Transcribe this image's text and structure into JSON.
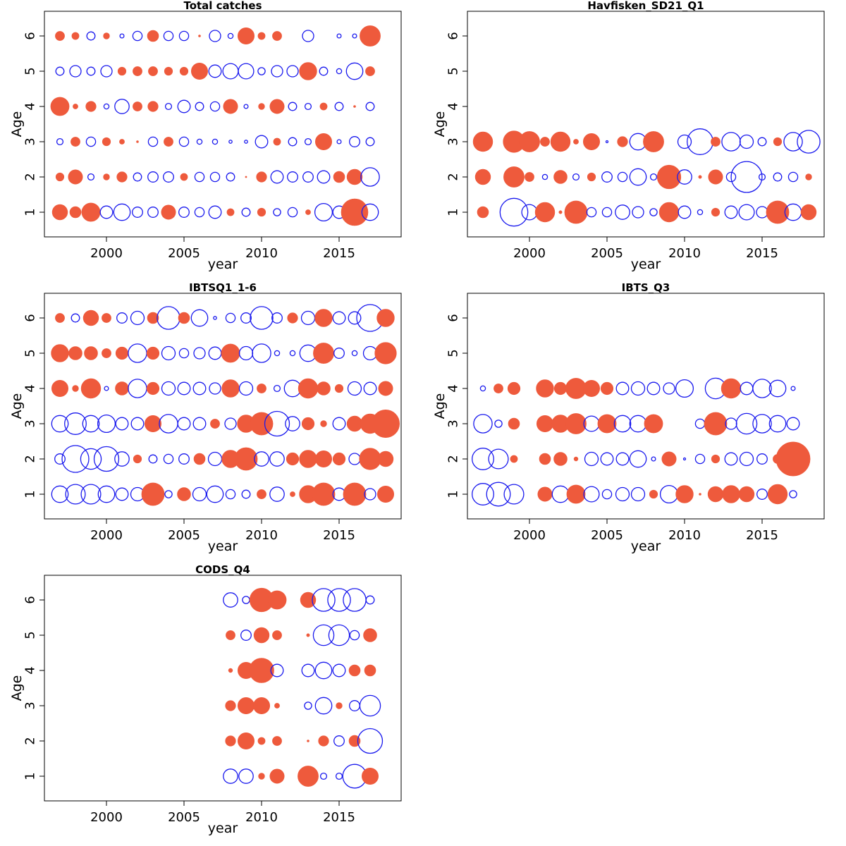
{
  "colors": {
    "positive": "#ee5a3c",
    "negative": "#1a1aee",
    "frame": "#000000"
  },
  "chart_data": [
    {
      "type": "scatter",
      "subtype": "bubble",
      "title": "Total catches",
      "xlabel": "year",
      "ylabel": "Age",
      "xlim": [
        1996,
        2019
      ],
      "ylim": [
        0.3,
        6.7
      ],
      "x_ticks": [
        2000,
        2005,
        2010,
        2015
      ],
      "y_ticks": [
        1,
        2,
        3,
        4,
        5,
        6
      ],
      "x_tick_labels": [
        "2000",
        "2005",
        "2010",
        "2015"
      ],
      "y_tick_labels": [
        "1",
        "2",
        "3",
        "4",
        "5",
        "6"
      ],
      "years": [
        1997,
        1998,
        1999,
        2000,
        2001,
        2002,
        2003,
        2004,
        2005,
        2006,
        2007,
        2008,
        2009,
        2010,
        2011,
        2012,
        2013,
        2014,
        2015,
        2016,
        2017
      ],
      "ages": [
        1,
        2,
        3,
        4,
        5,
        6
      ],
      "residuals": [
        [
          1.5,
          0.8,
          -0.6,
          1.8,
          -0.8,
          0.9
        ],
        [
          1.1,
          1.4,
          0.9,
          0.5,
          -1.1,
          0.7
        ],
        [
          1.8,
          -0.6,
          -0.9,
          1.0,
          -0.8,
          -0.8
        ],
        [
          -1.2,
          0.6,
          0.8,
          -0.5,
          -1.1,
          0.6
        ],
        [
          -1.6,
          1.0,
          0.5,
          -1.4,
          0.8,
          -0.4
        ],
        [
          -1.0,
          -0.8,
          0.2,
          0.9,
          0.9,
          -0.9
        ],
        [
          -1.0,
          -1.0,
          -0.9,
          1.0,
          0.9,
          1.1
        ],
        [
          1.4,
          -1.0,
          0.9,
          -0.6,
          0.8,
          -0.9
        ],
        [
          -1.0,
          0.7,
          -0.9,
          -1.2,
          0.8,
          -0.9
        ],
        [
          -0.9,
          -0.9,
          -0.5,
          -0.8,
          1.6,
          0.2
        ],
        [
          -1.2,
          -0.9,
          -0.5,
          -0.9,
          -1.2,
          -1.1
        ],
        [
          0.7,
          -0.8,
          -0.3,
          1.4,
          -1.5,
          -0.5
        ],
        [
          -0.8,
          0.15,
          -0.3,
          -0.4,
          -1.5,
          1.6
        ],
        [
          0.8,
          1.0,
          -1.2,
          0.6,
          -0.7,
          0.7
        ],
        [
          -0.7,
          -1.2,
          0.7,
          1.4,
          -1.1,
          0.9
        ],
        [
          -0.9,
          -1.0,
          -0.8,
          -0.8,
          -1.1,
          0.0
        ],
        [
          0.5,
          -1.0,
          -0.6,
          -0.6,
          1.7,
          -1.1
        ],
        [
          -1.7,
          -1.2,
          1.6,
          0.7,
          -0.8,
          0.0
        ],
        [
          -1.2,
          1.1,
          -0.4,
          -0.8,
          -0.5,
          -0.4
        ],
        [
          2.6,
          1.5,
          -1.0,
          0.2,
          -1.6,
          -0.4
        ],
        [
          -1.6,
          -1.8,
          -0.8,
          -0.8,
          0.9,
          2.0
        ]
      ]
    },
    {
      "type": "scatter",
      "subtype": "bubble",
      "title": "Havfisken_SD21_Q1",
      "xlabel": "year",
      "ylabel": "Age",
      "xlim": [
        1996,
        2019
      ],
      "ylim": [
        0.3,
        6.7
      ],
      "x_ticks": [
        2000,
        2005,
        2010,
        2015
      ],
      "y_ticks": [
        1,
        2,
        3,
        4,
        5,
        6
      ],
      "x_tick_labels": [
        "2000",
        "2005",
        "2010",
        "2015"
      ],
      "y_tick_labels": [
        "1",
        "2",
        "3",
        "4",
        "5",
        "6"
      ],
      "years": [
        1997,
        1998,
        1999,
        2000,
        2001,
        2002,
        2003,
        2004,
        2005,
        2006,
        2007,
        2008,
        2009,
        2010,
        2011,
        2012,
        2013,
        2014,
        2015,
        2016,
        2017,
        2018
      ],
      "ages": [
        1,
        2,
        3
      ],
      "residuals": [
        [
          1.1,
          1.5,
          1.9
        ],
        [
          0,
          0,
          0
        ],
        [
          -2.7,
          2.0,
          2.1
        ],
        [
          -1.5,
          0.9,
          2.0
        ],
        [
          1.9,
          -0.5,
          0.9
        ],
        [
          0.3,
          1.3,
          1.9
        ],
        [
          2.2,
          -0.6,
          0.5
        ],
        [
          -0.9,
          0.8,
          1.6
        ],
        [
          -0.9,
          -1.0,
          -0.2
        ],
        [
          -1.4,
          -0.9,
          1.0
        ],
        [
          -1.1,
          -1.6,
          -1.6
        ],
        [
          -0.7,
          -0.6,
          2.0
        ],
        [
          1.9,
          2.3,
          0
        ],
        [
          -1.2,
          -1.4,
          -1.3
        ],
        [
          -0.5,
          0.3,
          -2.5
        ],
        [
          0.8,
          1.4,
          0.9
        ],
        [
          -1.2,
          -0.9,
          -1.8
        ],
        [
          -1.5,
          -3.0,
          -1.3
        ],
        [
          -1.1,
          -0.6,
          -0.8
        ],
        [
          2.2,
          -0.8,
          0.8
        ],
        [
          -1.6,
          -0.9,
          -1.8
        ],
        [
          1.5,
          0.6,
          -2.2
        ]
      ]
    },
    {
      "type": "scatter",
      "subtype": "bubble",
      "title": "IBTSQ1_1-6",
      "xlabel": "year",
      "ylabel": "Age",
      "xlim": [
        1996,
        2019
      ],
      "ylim": [
        0.3,
        6.7
      ],
      "x_ticks": [
        2000,
        2005,
        2010,
        2015
      ],
      "y_ticks": [
        1,
        2,
        3,
        4,
        5,
        6
      ],
      "x_tick_labels": [
        "2000",
        "2005",
        "2010",
        "2015"
      ],
      "y_tick_labels": [
        "1",
        "2",
        "3",
        "4",
        "5",
        "6"
      ],
      "years": [
        1997,
        1998,
        1999,
        2000,
        2001,
        2002,
        2003,
        2004,
        2005,
        2006,
        2007,
        2008,
        2009,
        2010,
        2011,
        2012,
        2013,
        2014,
        2015,
        2016,
        2017,
        2018
      ],
      "ages": [
        1,
        2,
        3,
        4,
        5,
        6
      ],
      "residuals": [
        [
          -1.6,
          -1.0,
          -1.6,
          1.6,
          1.7,
          0.9
        ],
        [
          -1.9,
          -2.6,
          -2.1,
          0.6,
          1.3,
          -0.8
        ],
        [
          -1.9,
          -2.0,
          -1.6,
          1.9,
          1.3,
          1.5
        ],
        [
          -1.6,
          -2.4,
          -1.7,
          -0.4,
          0.9,
          0.9
        ],
        [
          -1.2,
          -1.4,
          -1.2,
          1.3,
          1.2,
          -1.0
        ],
        [
          -1.3,
          0.8,
          -1.2,
          -1.8,
          -1.8,
          -1.3
        ],
        [
          2.2,
          -0.8,
          1.6,
          1.2,
          1.2,
          1.1
        ],
        [
          -0.7,
          -0.9,
          -1.8,
          -1.3,
          -1.3,
          -2.2
        ],
        [
          1.3,
          -1.0,
          -1.2,
          -1.2,
          -0.9,
          1.1
        ],
        [
          -1.3,
          1.1,
          -1.2,
          -1.2,
          -1.1,
          -1.6
        ],
        [
          -1.6,
          -1.3,
          0.9,
          -1.1,
          -1.2,
          -0.3
        ],
        [
          -0.9,
          1.7,
          -1.1,
          1.7,
          1.8,
          -0.9
        ],
        [
          -0.8,
          2.2,
          1.7,
          -1.3,
          -1.3,
          -1.0
        ],
        [
          0.9,
          -1.4,
          2.2,
          0.9,
          -1.8,
          -2.2
        ],
        [
          -1.4,
          -1.4,
          -2.4,
          -0.6,
          -0.5,
          -1.0
        ],
        [
          0.5,
          1.2,
          -1.4,
          -1.6,
          -0.5,
          1.0
        ],
        [
          1.7,
          1.7,
          1.2,
          1.9,
          -1.6,
          -1.3
        ],
        [
          2.2,
          1.6,
          0.6,
          1.3,
          2.0,
          1.7
        ],
        [
          -1.2,
          1.2,
          -1.2,
          0.8,
          -1.0,
          -1.2
        ],
        [
          2.2,
          -1.1,
          1.5,
          -1.3,
          -0.5,
          -1.2
        ],
        [
          -1.1,
          2.1,
          1.9,
          -1.2,
          -1.3,
          -2.6
        ],
        [
          1.6,
          1.5,
          2.7,
          1.4,
          2.1,
          1.7
        ]
      ]
    },
    {
      "type": "scatter",
      "subtype": "bubble",
      "title": "IBTS_Q3",
      "xlabel": "year",
      "ylabel": "Age",
      "xlim": [
        1996,
        2019
      ],
      "ylim": [
        0.3,
        6.7
      ],
      "x_ticks": [
        2000,
        2005,
        2010,
        2015
      ],
      "y_ticks": [
        1,
        2,
        3,
        4,
        5,
        6
      ],
      "x_tick_labels": [
        "2000",
        "2005",
        "2010",
        "2015"
      ],
      "y_tick_labels": [
        "1",
        "2",
        "3",
        "4",
        "5",
        "6"
      ],
      "years": [
        1997,
        1998,
        1999,
        2000,
        2001,
        2002,
        2003,
        2004,
        2005,
        2006,
        2007,
        2008,
        2009,
        2010,
        2011,
        2012,
        2013,
        2014,
        2015,
        2016,
        2017
      ],
      "ages": [
        1,
        2,
        3,
        4
      ],
      "residuals": [
        [
          -2.1,
          -2.1,
          -1.8,
          -0.5
        ],
        [
          -2.3,
          -1.9,
          -0.7,
          0.9
        ],
        [
          -1.9,
          0.7,
          1.1,
          1.2
        ],
        [
          0,
          0,
          0,
          0
        ],
        [
          1.4,
          1.1,
          1.6,
          1.7
        ],
        [
          -1.6,
          1.3,
          1.7,
          1.2
        ],
        [
          1.8,
          0.4,
          2.0,
          2.0
        ],
        [
          -1.5,
          -1.3,
          -1.5,
          1.6
        ],
        [
          -0.9,
          -1.2,
          1.8,
          1.2
        ],
        [
          -1.3,
          -1.2,
          -1.6,
          -1.2
        ],
        [
          -1.3,
          -1.6,
          -1.6,
          -1.3
        ],
        [
          0.8,
          -0.4,
          1.8,
          -1.2
        ],
        [
          -1.7,
          1.4,
          0,
          -1.1
        ],
        [
          1.7,
          -0.2,
          0,
          -1.7
        ],
        [
          0.2,
          -0.9,
          -0.9,
          0
        ],
        [
          1.5,
          0.8,
          2.2,
          -2.0
        ],
        [
          1.7,
          -1.2,
          -1.1,
          1.9
        ],
        [
          1.5,
          -1.3,
          -2.0,
          -1.2
        ],
        [
          -1.0,
          -1.0,
          -1.8,
          -1.8
        ],
        [
          1.9,
          0.9,
          -1.6,
          -1.6
        ],
        [
          -0.7,
          3.3,
          -1.2,
          -0.4
        ]
      ]
    },
    {
      "type": "scatter",
      "subtype": "bubble",
      "title": "CODS_Q4",
      "xlabel": "year",
      "ylabel": "Age",
      "xlim": [
        1996,
        2019
      ],
      "ylim": [
        0.3,
        6.7
      ],
      "x_ticks": [
        2000,
        2005,
        2010,
        2015
      ],
      "y_ticks": [
        1,
        2,
        3,
        4,
        5,
        6
      ],
      "x_tick_labels": [
        "2000",
        "2005",
        "2010",
        "2015"
      ],
      "y_tick_labels": [
        "1",
        "2",
        "3",
        "4",
        "5",
        "6"
      ],
      "years": [
        2008,
        2009,
        2010,
        2011,
        2013,
        2014,
        2015,
        2016,
        2017
      ],
      "ages": [
        1,
        2,
        3,
        4,
        5,
        6
      ],
      "residuals": [
        [
          -1.4,
          1.0,
          1.0,
          0.4,
          0.9,
          -1.4
        ],
        [
          -1.4,
          1.6,
          1.6,
          1.6,
          -1.0,
          -0.7
        ],
        [
          0.6,
          0.7,
          1.6,
          2.4,
          1.5,
          2.3
        ],
        [
          1.4,
          0.9,
          0.5,
          -1.2,
          0.9,
          1.8
        ],
        [
          2.0,
          0.2,
          -0.7,
          -1.2,
          0.3,
          1.5
        ],
        [
          -0.6,
          1.0,
          -1.6,
          -1.6,
          -2.0,
          -2.2
        ],
        [
          -0.6,
          -1.0,
          0.6,
          -1.2,
          -2.0,
          -2.2
        ],
        [
          -2.3,
          1.1,
          -1.0,
          1.1,
          -0.9,
          -2.2
        ],
        [
          1.6,
          -2.4,
          -2.0,
          1.1,
          1.3,
          -0.8
        ]
      ]
    }
  ]
}
